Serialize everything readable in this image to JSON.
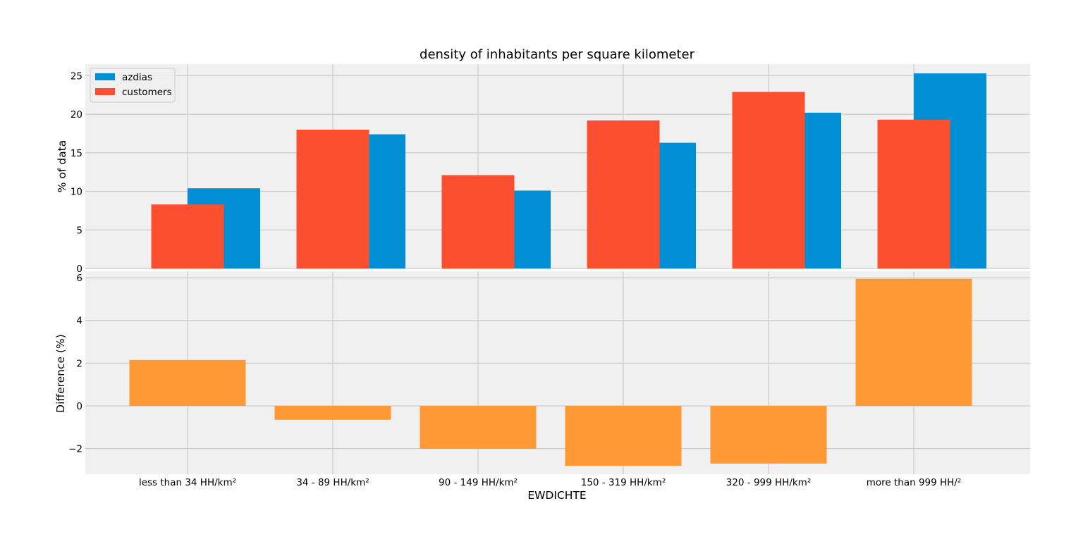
{
  "chart_data": [
    {
      "type": "bar",
      "title": "density of inhabitants per square kilometer",
      "xlabel": "",
      "ylabel": "% of data",
      "ylim": [
        0,
        26.5
      ],
      "yticks": [
        0,
        5,
        10,
        15,
        20,
        25
      ],
      "grid": true,
      "legend": "top-left",
      "categories": [
        "less than 34 HH/km²",
        "34 - 89 HH/km²",
        "90 - 149 HH/km²",
        "150 - 319 HH/km²",
        "320 - 999 HH/km²",
        "more than 999 HH/²"
      ],
      "series": [
        {
          "name": "azdias",
          "color": "#008fd5",
          "values": [
            10.4,
            17.4,
            10.1,
            16.3,
            20.2,
            25.3
          ]
        },
        {
          "name": "customers",
          "color": "#fc4f30",
          "values": [
            8.3,
            18.0,
            12.1,
            19.2,
            22.9,
            19.3
          ]
        }
      ]
    },
    {
      "type": "bar",
      "title": "",
      "xlabel": "EWDICHTE",
      "ylabel": "Difference (%)",
      "ylim": [
        -3.2,
        6.3
      ],
      "yticks": [
        -2,
        0,
        2,
        4,
        6
      ],
      "ytick_labels": [
        "−2",
        "0",
        "2",
        "4",
        "6"
      ],
      "grid": true,
      "categories": [
        "less than 34 HH/km²",
        "34 - 89 HH/km²",
        "90 - 149 HH/km²",
        "150 - 319 HH/km²",
        "320 - 999 HH/km²",
        "more than 999 HH/²"
      ],
      "series": [
        {
          "color": "#fe9935",
          "values": [
            2.15,
            -0.65,
            -2.0,
            -2.8,
            -2.7,
            5.95
          ]
        }
      ]
    }
  ]
}
